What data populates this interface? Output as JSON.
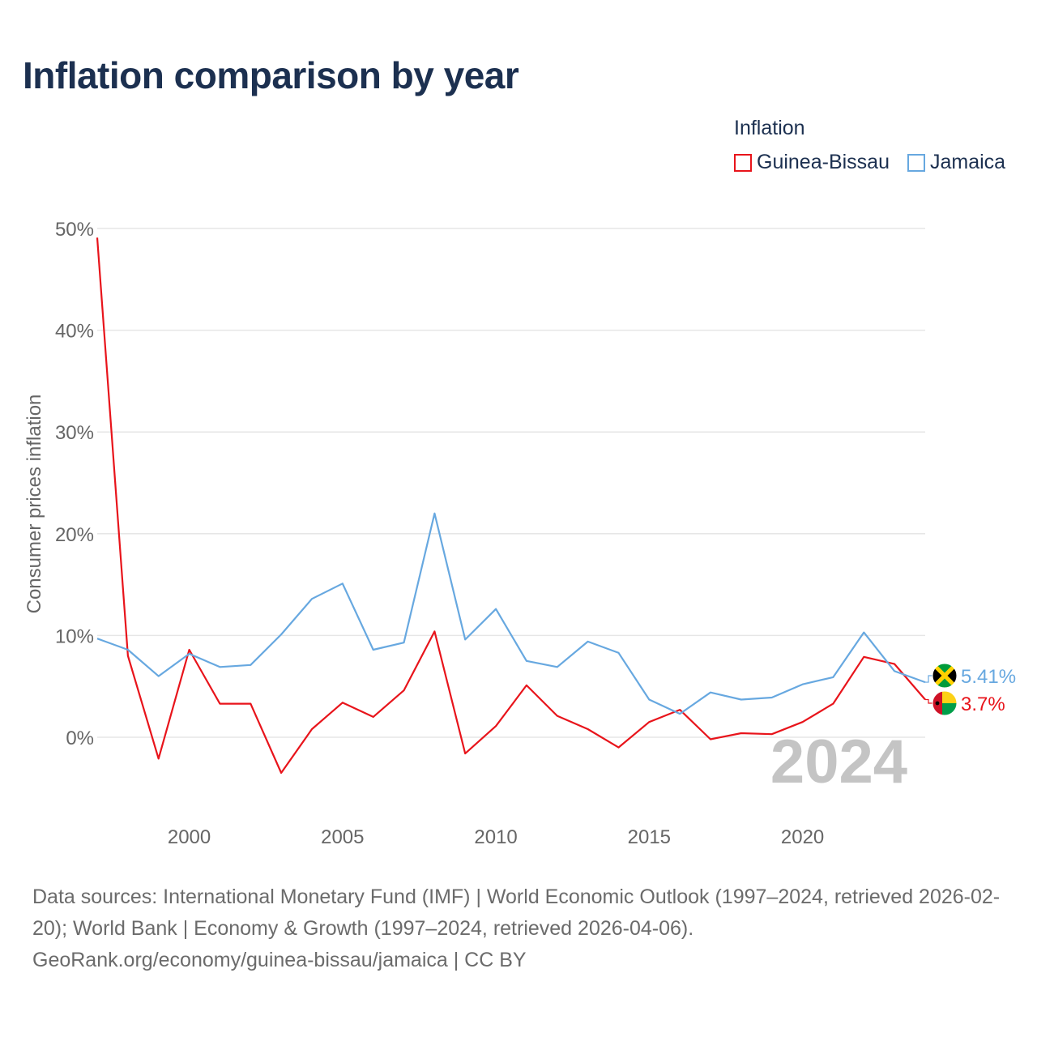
{
  "title": "Inflation comparison by year",
  "legend": {
    "title": "Inflation",
    "items": [
      {
        "label": "Guinea-Bissau",
        "color": "#e8141b"
      },
      {
        "label": "Jamaica",
        "color": "#67a8e0"
      }
    ]
  },
  "footer": {
    "sources": "Data sources: International Monetary Fund (IMF) | World Economic Outlook (1997–2024, retrieved 2026-02-20); World Bank | Economy & Growth (1997–2024, retrieved 2026-04-06).",
    "link": "GeoRank.org/economy/guinea-bissau/jamaica | CC BY"
  },
  "chart_data": {
    "type": "line",
    "title": "Inflation comparison by year",
    "xlabel": "",
    "ylabel": "Consumer prices inflation",
    "x": [
      1997,
      1998,
      1999,
      2000,
      2001,
      2002,
      2003,
      2004,
      2005,
      2006,
      2007,
      2008,
      2009,
      2010,
      2011,
      2012,
      2013,
      2014,
      2015,
      2016,
      2017,
      2018,
      2019,
      2020,
      2021,
      2022,
      2023,
      2024
    ],
    "xlim": [
      1997,
      2024
    ],
    "ylim": [
      -8,
      50
    ],
    "xticks": [
      2000,
      2005,
      2010,
      2015,
      2020
    ],
    "xtick_labels": [
      "2000",
      "2005",
      "2010",
      "2015",
      "2020"
    ],
    "yticks": [
      0,
      10,
      20,
      30,
      40,
      50
    ],
    "ytick_labels": [
      "0%",
      "10%",
      "20%",
      "30%",
      "40%",
      "50%"
    ],
    "grid": true,
    "legend_position": "top-right",
    "year_watermark": "2024",
    "series": [
      {
        "name": "Guinea-Bissau",
        "color": "#e8141b",
        "end_label": "3.7%",
        "flag": "guinea-bissau-flag",
        "values": [
          49.1,
          8.0,
          -2.1,
          8.6,
          3.3,
          3.3,
          -3.5,
          0.8,
          3.4,
          2.0,
          4.6,
          10.4,
          -1.6,
          1.1,
          5.1,
          2.1,
          0.8,
          -1.0,
          1.5,
          2.7,
          -0.2,
          0.4,
          0.3,
          1.5,
          3.3,
          7.9,
          7.2,
          3.7
        ]
      },
      {
        "name": "Jamaica",
        "color": "#67a8e0",
        "end_label": "5.41%",
        "flag": "jamaica-flag",
        "values": [
          9.7,
          8.6,
          6.0,
          8.2,
          6.9,
          7.1,
          10.1,
          13.6,
          15.1,
          8.6,
          9.3,
          22.0,
          9.6,
          12.6,
          7.5,
          6.9,
          9.4,
          8.3,
          3.7,
          2.3,
          4.4,
          3.7,
          3.9,
          5.2,
          5.9,
          10.3,
          6.5,
          5.41
        ]
      }
    ]
  }
}
